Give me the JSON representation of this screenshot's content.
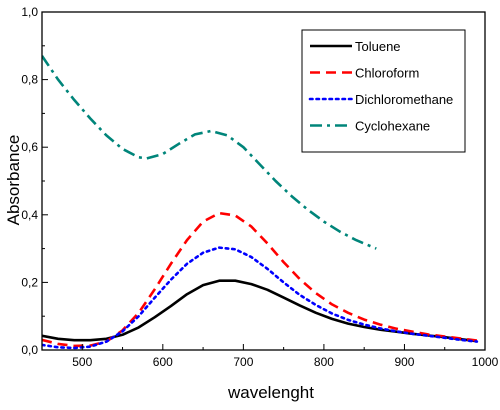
{
  "chart_data": {
    "type": "line",
    "title": "",
    "xlabel": "wavelenght",
    "ylabel": "Absorbance",
    "xlim": [
      450,
      1000
    ],
    "ylim": [
      0.0,
      1.0
    ],
    "xticks": [
      500,
      600,
      700,
      800,
      900,
      1000
    ],
    "yticks": [
      0.0,
      0.2,
      0.4,
      0.6,
      0.8,
      1.0
    ],
    "ytick_labels": [
      "0,0",
      "0,2",
      "0,4",
      "0,6",
      "0,8",
      "1,0"
    ],
    "grid": false,
    "legend_position": "top-right",
    "series": [
      {
        "name": "Toluene",
        "color": "#000000",
        "dash": "solid",
        "points": [
          [
            450,
            0.042
          ],
          [
            470,
            0.033
          ],
          [
            490,
            0.029
          ],
          [
            510,
            0.029
          ],
          [
            530,
            0.033
          ],
          [
            550,
            0.045
          ],
          [
            570,
            0.067
          ],
          [
            590,
            0.097
          ],
          [
            610,
            0.13
          ],
          [
            630,
            0.165
          ],
          [
            650,
            0.192
          ],
          [
            670,
            0.205
          ],
          [
            690,
            0.205
          ],
          [
            710,
            0.195
          ],
          [
            730,
            0.178
          ],
          [
            750,
            0.155
          ],
          [
            770,
            0.132
          ],
          [
            790,
            0.11
          ],
          [
            810,
            0.092
          ],
          [
            830,
            0.078
          ],
          [
            850,
            0.068
          ],
          [
            870,
            0.06
          ],
          [
            890,
            0.054
          ],
          [
            910,
            0.048
          ],
          [
            930,
            0.043
          ],
          [
            950,
            0.038
          ],
          [
            970,
            0.032
          ],
          [
            990,
            0.026
          ]
        ]
      },
      {
        "name": "Chloroform",
        "color": "#ff0000",
        "dash": "dashed",
        "points": [
          [
            450,
            0.03
          ],
          [
            470,
            0.018
          ],
          [
            490,
            0.012
          ],
          [
            510,
            0.013
          ],
          [
            530,
            0.025
          ],
          [
            550,
            0.058
          ],
          [
            570,
            0.11
          ],
          [
            590,
            0.18
          ],
          [
            610,
            0.255
          ],
          [
            630,
            0.325
          ],
          [
            650,
            0.38
          ],
          [
            670,
            0.405
          ],
          [
            690,
            0.398
          ],
          [
            710,
            0.365
          ],
          [
            730,
            0.315
          ],
          [
            750,
            0.26
          ],
          [
            770,
            0.21
          ],
          [
            790,
            0.168
          ],
          [
            810,
            0.135
          ],
          [
            830,
            0.11
          ],
          [
            850,
            0.09
          ],
          [
            870,
            0.075
          ],
          [
            890,
            0.063
          ],
          [
            910,
            0.054
          ],
          [
            930,
            0.046
          ],
          [
            950,
            0.04
          ],
          [
            970,
            0.034
          ],
          [
            990,
            0.028
          ]
        ]
      },
      {
        "name": "Dichloromethane",
        "color": "#0000ff",
        "dash": "dotted",
        "points": [
          [
            450,
            0.015
          ],
          [
            470,
            0.008
          ],
          [
            490,
            0.006
          ],
          [
            510,
            0.01
          ],
          [
            530,
            0.025
          ],
          [
            550,
            0.055
          ],
          [
            570,
            0.1
          ],
          [
            590,
            0.155
          ],
          [
            610,
            0.208
          ],
          [
            630,
            0.255
          ],
          [
            650,
            0.288
          ],
          [
            670,
            0.303
          ],
          [
            690,
            0.298
          ],
          [
            710,
            0.275
          ],
          [
            730,
            0.24
          ],
          [
            750,
            0.2
          ],
          [
            770,
            0.163
          ],
          [
            790,
            0.133
          ],
          [
            810,
            0.108
          ],
          [
            830,
            0.089
          ],
          [
            850,
            0.075
          ],
          [
            870,
            0.064
          ],
          [
            890,
            0.055
          ],
          [
            910,
            0.048
          ],
          [
            930,
            0.042
          ],
          [
            950,
            0.036
          ],
          [
            970,
            0.03
          ],
          [
            990,
            0.025
          ]
        ]
      },
      {
        "name": "Cyclohexane",
        "color": "#00857a",
        "dash": "dashdot",
        "points": [
          [
            450,
            0.87
          ],
          [
            470,
            0.8
          ],
          [
            490,
            0.74
          ],
          [
            510,
            0.685
          ],
          [
            530,
            0.635
          ],
          [
            550,
            0.595
          ],
          [
            570,
            0.57
          ],
          [
            580,
            0.567
          ],
          [
            600,
            0.58
          ],
          [
            620,
            0.61
          ],
          [
            640,
            0.638
          ],
          [
            660,
            0.648
          ],
          [
            680,
            0.635
          ],
          [
            700,
            0.6
          ],
          [
            720,
            0.55
          ],
          [
            740,
            0.5
          ],
          [
            760,
            0.455
          ],
          [
            780,
            0.415
          ],
          [
            800,
            0.38
          ],
          [
            820,
            0.35
          ],
          [
            840,
            0.325
          ],
          [
            865,
            0.3
          ]
        ]
      }
    ]
  }
}
